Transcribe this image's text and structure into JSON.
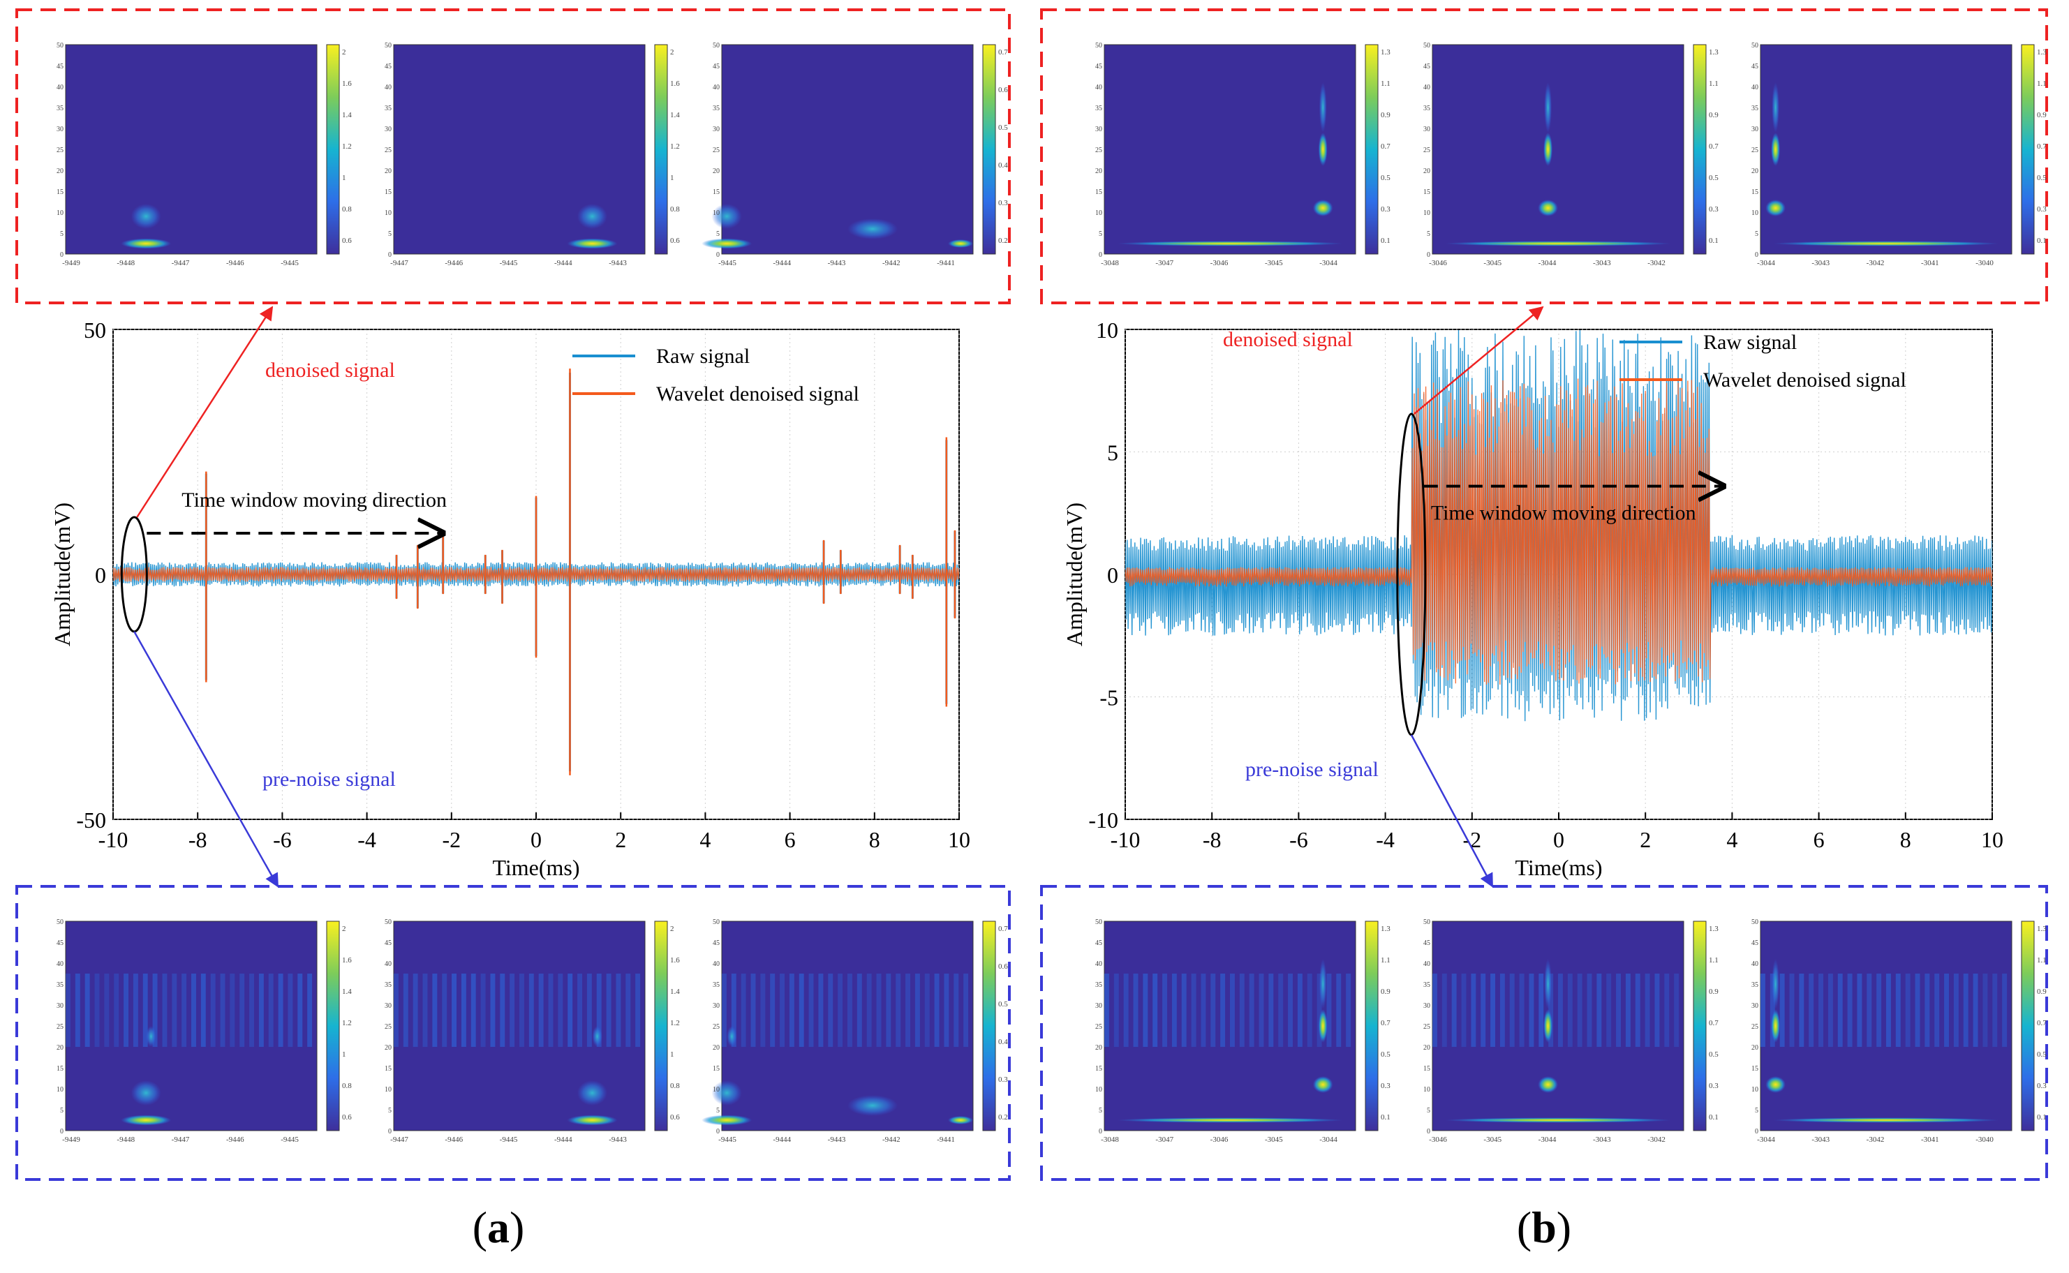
{
  "colors": {
    "raw": "#1a8fd0",
    "denoised": "#f45a1c",
    "red_annotation": "#ee2222",
    "blue_annotation": "#3a3ad8",
    "scalogram_bg": "#3b2e9a"
  },
  "panels": [
    {
      "label_open": "(",
      "label_letter": "a",
      "label_close": ")",
      "top_group_ticks": [
        [
          "-9449",
          "-9448",
          "-9447",
          "-9446",
          "-9445"
        ],
        [
          "-9447",
          "-9446",
          "-9445",
          "-9444",
          "-9443"
        ],
        [
          "-9445",
          "-9444",
          "-9443",
          "-9442",
          "-9441"
        ]
      ],
      "bottom_group_ticks": [
        [
          "-9449",
          "-9448",
          "-9447",
          "-9446",
          "-9445"
        ],
        [
          "-9447",
          "-9446",
          "-9445",
          "-9444",
          "-9443"
        ],
        [
          "-9445",
          "-9444",
          "-9443",
          "-9442",
          "-9441"
        ]
      ],
      "colorbar_ticks": [
        [
          "2",
          "1.6",
          "1.4",
          "1.2",
          "1",
          "0.8",
          "0.6"
        ],
        [
          "2",
          "1.6",
          "1.4",
          "1.2",
          "1",
          "0.8",
          "0.6"
        ],
        [
          "0.7",
          "0.6",
          "0.5",
          "0.4",
          "0.3",
          "0.2"
        ]
      ],
      "scalogram_y_ticks": [
        "50",
        "45",
        "40",
        "35",
        "30",
        "25",
        "20",
        "15",
        "10",
        "5",
        "0"
      ],
      "chart_data": {
        "type": "line",
        "xlabel": "Time(ms)",
        "ylabel": "Amplitude(mV)",
        "xlim": [
          -10,
          10
        ],
        "ylim": [
          -50,
          50
        ],
        "x_ticks": [
          "-10",
          "-8",
          "-6",
          "-4",
          "-2",
          "0",
          "2",
          "4",
          "6",
          "8",
          "10"
        ],
        "y_ticks": [
          "50",
          "0",
          "-50"
        ],
        "legend": [
          "Raw signal",
          "Wavelet denoised signal"
        ],
        "series": [
          {
            "name": "Raw signal",
            "baseline_band": [
              -2.5,
              2.5
            ]
          },
          {
            "name": "Wavelet denoised signal",
            "baseline_band": [
              -1.5,
              1.5
            ]
          }
        ],
        "spikes": [
          {
            "x": -7.8,
            "max": 21,
            "min": -22
          },
          {
            "x": -3.3,
            "max": 4,
            "min": -5
          },
          {
            "x": -2.8,
            "max": 6,
            "min": -7
          },
          {
            "x": -2.2,
            "max": 8,
            "min": -4
          },
          {
            "x": -1.2,
            "max": 4,
            "min": -4
          },
          {
            "x": -0.8,
            "max": 5,
            "min": -6
          },
          {
            "x": 0.0,
            "max": 16,
            "min": -17
          },
          {
            "x": 0.8,
            "max": 42,
            "min": -41
          },
          {
            "x": 6.8,
            "max": 7,
            "min": -6
          },
          {
            "x": 7.2,
            "max": 5,
            "min": -4
          },
          {
            "x": 8.6,
            "max": 6,
            "min": -4
          },
          {
            "x": 8.9,
            "max": 4,
            "min": -5
          },
          {
            "x": 9.7,
            "max": 28,
            "min": -27
          },
          {
            "x": 9.9,
            "max": 9,
            "min": -9
          }
        ],
        "annotations": {
          "window_direction": "Time window moving direction",
          "denoised": "denoised signal",
          "pre_noise": "pre-noise signal"
        }
      }
    },
    {
      "label_open": "(",
      "label_letter": "b",
      "label_close": ")",
      "top_group_ticks": [
        [
          "-3048",
          "-3047",
          "-3046",
          "-3045",
          "-3044"
        ],
        [
          "-3046",
          "-3045",
          "-3044",
          "-3043",
          "-3042"
        ],
        [
          "-3044",
          "-3043",
          "-3042",
          "-3041",
          "-3040"
        ]
      ],
      "bottom_group_ticks": [
        [
          "-3048",
          "-3047",
          "-3046",
          "-3045",
          "-3044"
        ],
        [
          "-3046",
          "-3045",
          "-3044",
          "-3043",
          "-3042"
        ],
        [
          "-3044",
          "-3043",
          "-3042",
          "-3041",
          "-3040"
        ]
      ],
      "colorbar_ticks": [
        [
          "1.3",
          "1.1",
          "0.9",
          "0.7",
          "0.5",
          "0.3",
          "0.1"
        ],
        [
          "1.3",
          "1.1",
          "0.9",
          "0.7",
          "0.5",
          "0.3",
          "0.1"
        ],
        [
          "1.3",
          "1.1",
          "0.9",
          "0.7",
          "0.5",
          "0.3",
          "0.1"
        ]
      ],
      "scalogram_y_ticks": [
        "50",
        "45",
        "40",
        "35",
        "30",
        "25",
        "20",
        "15",
        "10",
        "5",
        "0"
      ],
      "chart_data": {
        "type": "line",
        "xlabel": "Time(ms)",
        "ylabel": "Amplitude(mV)",
        "xlim": [
          -10,
          10
        ],
        "ylim": [
          -10,
          10
        ],
        "x_ticks": [
          "-10",
          "-8",
          "-6",
          "-4",
          "-2",
          "0",
          "2",
          "4",
          "6",
          "8",
          "10"
        ],
        "y_ticks": [
          "10",
          "5",
          "0",
          "-5",
          "-10"
        ],
        "legend": [
          "Raw signal",
          "Wavelet denoised signal"
        ],
        "series": [
          {
            "name": "Raw signal",
            "baseline_band": [
              -2.5,
              1.6
            ],
            "burst_band": [
              -6,
              10
            ],
            "burst_range_ms": [
              -3.4,
              3.5
            ]
          },
          {
            "name": "Wavelet denoised signal",
            "baseline_band": [
              -0.5,
              0.3
            ],
            "burst_band": [
              -4.5,
              8
            ],
            "burst_range_ms": [
              -3.4,
              3.5
            ]
          }
        ],
        "annotations": {
          "window_direction": "Time window moving direction",
          "denoised": "denoised signal",
          "pre_noise": "pre-noise signal"
        }
      }
    }
  ]
}
